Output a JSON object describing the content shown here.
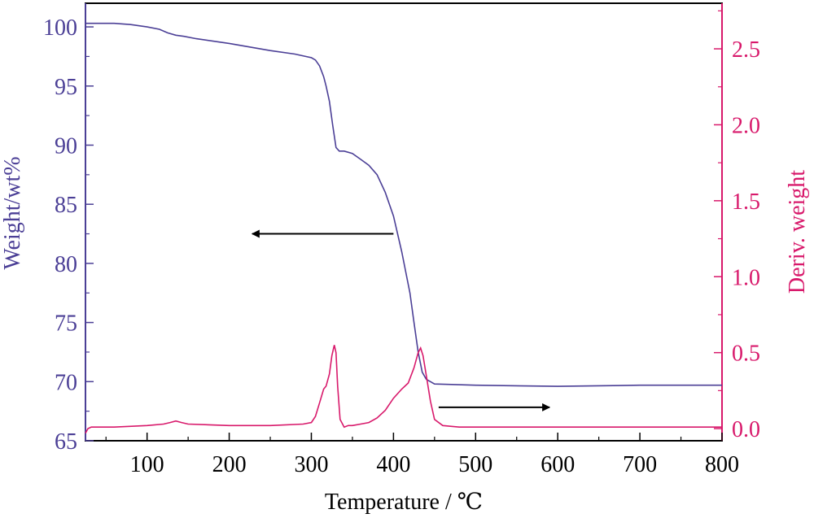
{
  "chart_data": {
    "type": "line",
    "title": "",
    "xlabel": "Temperature / ℃",
    "ylabel_left": "Weight/wt%",
    "ylabel_right": "Deriv. weight",
    "xlim": [
      25,
      800
    ],
    "ylim_left": [
      65,
      102
    ],
    "ylim_right": [
      -0.08,
      2.8
    ],
    "x_ticks": [
      100,
      200,
      300,
      400,
      500,
      600,
      700,
      800
    ],
    "y_ticks_left": [
      65,
      70,
      75,
      80,
      85,
      90,
      95,
      100
    ],
    "y_ticks_right": [
      0.0,
      0.5,
      1.0,
      1.5,
      2.0,
      2.5
    ],
    "x_tick_labels": [
      "100",
      "200",
      "300",
      "400",
      "500",
      "600",
      "700",
      "800"
    ],
    "y_tick_labels_left": [
      "65",
      "70",
      "75",
      "80",
      "85",
      "90",
      "95",
      "100"
    ],
    "y_tick_labels_right": [
      "0.0",
      "0.5",
      "1.0",
      "1.5",
      "2.0",
      "2.5"
    ],
    "grid": false,
    "colors": {
      "weight": "#4b3f96",
      "deriv": "#d8196b",
      "left_axis": "#4b3f96",
      "right_axis": "#d8196b",
      "frame": "#000000"
    },
    "series": [
      {
        "axis": "left",
        "x": [
          25,
          40,
          60,
          80,
          100,
          115,
          125,
          135,
          145,
          160,
          200,
          250,
          280,
          300,
          305,
          310,
          315,
          318,
          322,
          326,
          330,
          334,
          340,
          350,
          360,
          370,
          380,
          390,
          400,
          410,
          420,
          425,
          430,
          435,
          440,
          450,
          500,
          600,
          700,
          800
        ],
        "y": [
          100.3,
          100.3,
          100.3,
          100.2,
          100.0,
          99.8,
          99.5,
          99.3,
          99.2,
          99.0,
          98.6,
          98.0,
          97.7,
          97.4,
          97.2,
          96.7,
          95.8,
          95.0,
          93.7,
          91.7,
          89.8,
          89.5,
          89.5,
          89.3,
          88.8,
          88.3,
          87.5,
          86.0,
          84.0,
          81.0,
          77.5,
          75.0,
          72.5,
          70.8,
          70.2,
          69.8,
          69.7,
          69.6,
          69.7,
          69.7
        ]
      },
      {
        "axis": "right",
        "x": [
          25,
          28,
          32,
          40,
          60,
          100,
          120,
          128,
          135,
          142,
          150,
          200,
          250,
          290,
          300,
          305,
          310,
          315,
          318,
          322,
          325,
          328,
          330,
          332,
          335,
          340,
          345,
          350,
          360,
          370,
          380,
          390,
          400,
          410,
          418,
          425,
          430,
          433,
          436,
          440,
          445,
          450,
          460,
          480,
          500,
          600,
          700,
          800
        ],
        "y": [
          -0.03,
          0.0,
          0.01,
          0.01,
          0.01,
          0.02,
          0.03,
          0.04,
          0.05,
          0.04,
          0.03,
          0.02,
          0.02,
          0.03,
          0.04,
          0.08,
          0.17,
          0.26,
          0.28,
          0.36,
          0.48,
          0.55,
          0.5,
          0.28,
          0.06,
          0.01,
          0.02,
          0.02,
          0.03,
          0.04,
          0.07,
          0.12,
          0.2,
          0.26,
          0.3,
          0.4,
          0.5,
          0.53,
          0.48,
          0.35,
          0.18,
          0.06,
          0.02,
          0.01,
          0.01,
          0.01,
          0.01,
          0.01
        ]
      }
    ],
    "annotations": [
      {
        "type": "arrow",
        "direction": "left",
        "points_to_axis": "left",
        "from": [
          400,
          82.5
        ],
        "to": [
          228,
          82.5
        ]
      },
      {
        "type": "arrow",
        "direction": "right",
        "points_to_axis": "right",
        "from": [
          455,
          0.14
        ],
        "to": [
          590,
          0.14
        ]
      }
    ]
  }
}
